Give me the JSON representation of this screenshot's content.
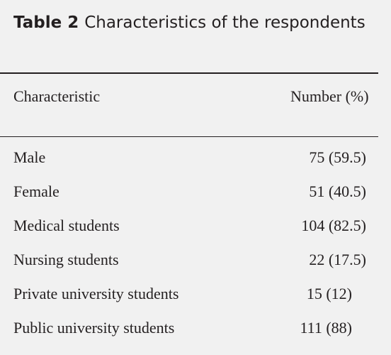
{
  "table": {
    "label": "Table 2",
    "title": "Characteristics of the respondents",
    "header": [
      "Characteristic",
      "Number (%)"
    ],
    "rows": [
      [
        "Male",
        "75 (59.5)"
      ],
      [
        "Female",
        "51 (40.5)"
      ],
      [
        "Medical students",
        "104 (82.5)"
      ],
      [
        "Nursing students",
        "22 (17.5)"
      ],
      [
        "Private university students",
        "15 (12)"
      ],
      [
        "Public university students",
        "111 (88)"
      ]
    ]
  }
}
